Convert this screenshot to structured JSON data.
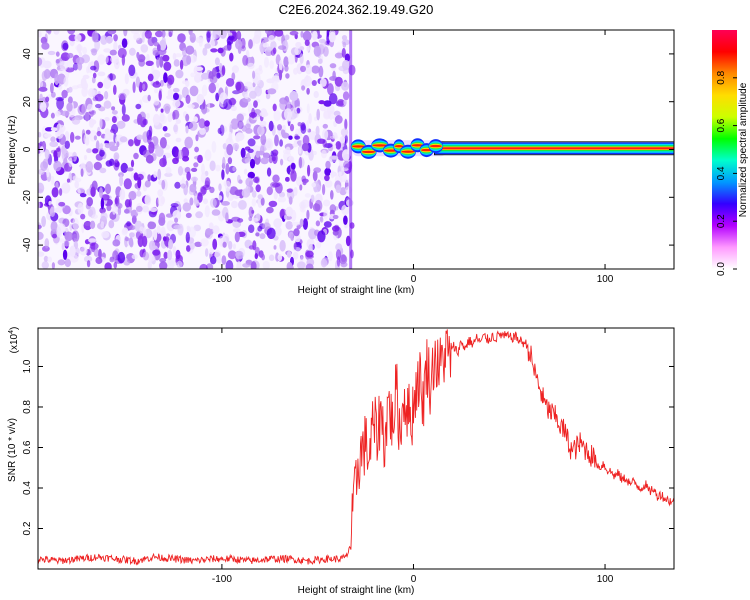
{
  "title": "C2E6.2024.362.19.49.G20",
  "chart_data": [
    {
      "type": "heatmap",
      "title": "C2E6.2024.362.19.49.G20",
      "xlabel": "Height of straight line (km)",
      "ylabel": "Frequency (Hz)",
      "xlim": [
        -196,
        136
      ],
      "ylim": [
        -50,
        50
      ],
      "xticks": [
        -100,
        0,
        100
      ],
      "yticks": [
        -40,
        -20,
        0,
        20,
        40
      ],
      "noise_region_x": [
        -196,
        -32
      ],
      "signal_start_x": -32,
      "signal_frequency_hz": 0.5,
      "signal_wobble_x": [
        -32,
        12
      ],
      "colorbar": {
        "label": "Normalized spectral amplitude",
        "range": [
          0,
          1
        ],
        "ticks": [
          "0.0",
          "0.2",
          "0.4",
          "0.6",
          "0.8"
        ],
        "tick_values": [
          0.0,
          0.2,
          0.4,
          0.6,
          0.8
        ],
        "colors": [
          "#ffffff",
          "#ff99ff",
          "#b300ff",
          "#3300ff",
          "#0099ff",
          "#00ffcc",
          "#00ff00",
          "#ccff00",
          "#ffdd00",
          "#ff8800",
          "#ff0000",
          "#ff0055"
        ]
      }
    },
    {
      "type": "line",
      "xlabel": "Height of straight line (km)",
      "ylabel": "SNR (10 * v/v)",
      "y_multiplier": "(x10",
      "y_multiplier_exp": "4",
      "y_multiplier_close": ")",
      "xlim": [
        -196,
        136
      ],
      "ylim": [
        0,
        1.19
      ],
      "xticks": [
        -100,
        0,
        100
      ],
      "yticks": [
        "0.2",
        "0.4",
        "0.6",
        "0.8",
        "1.0"
      ],
      "ytick_values": [
        0.2,
        0.4,
        0.6,
        0.8,
        1.0
      ],
      "series": [
        {
          "color": "#ee2222",
          "x": [
            -196,
            -185,
            -175,
            -165,
            -155,
            -145,
            -135,
            -125,
            -115,
            -105,
            -95,
            -85,
            -75,
            -65,
            -55,
            -45,
            -38,
            -35,
            -33,
            -31,
            -29,
            -27,
            -25,
            -23,
            -21,
            -19,
            -17,
            -15,
            -13,
            -11,
            -9,
            -7,
            -5,
            -3,
            -1,
            1,
            3,
            5,
            7,
            9,
            11,
            13,
            15,
            17,
            19,
            21,
            23,
            25,
            27,
            29,
            31,
            33,
            35,
            37,
            39,
            41,
            43,
            45,
            47,
            49,
            51,
            53,
            55,
            57,
            59,
            61,
            63,
            65,
            67,
            69,
            71,
            73,
            75,
            77,
            79,
            81,
            83,
            85,
            87,
            89,
            91,
            93,
            95,
            97,
            99,
            101,
            103,
            105,
            107,
            109,
            111,
            113,
            115,
            117,
            119,
            121,
            123,
            125,
            127,
            129,
            131,
            133,
            136
          ],
          "y": [
            0.05,
            0.04,
            0.05,
            0.06,
            0.05,
            0.04,
            0.06,
            0.05,
            0.04,
            0.05,
            0.05,
            0.04,
            0.05,
            0.05,
            0.04,
            0.05,
            0.05,
            0.06,
            0.12,
            0.32,
            0.52,
            0.58,
            0.62,
            0.55,
            0.72,
            0.66,
            0.78,
            0.62,
            0.84,
            0.7,
            0.9,
            0.66,
            0.86,
            0.78,
            0.74,
            0.88,
            0.96,
            0.82,
            1.02,
            0.9,
            1.06,
            0.98,
            1.03,
            1.08,
            1.04,
            1.1,
            1.07,
            1.12,
            1.09,
            1.13,
            1.11,
            1.14,
            1.12,
            1.15,
            1.13,
            1.15,
            1.14,
            1.16,
            1.15,
            1.15,
            1.14,
            1.15,
            1.13,
            1.12,
            1.11,
            1.06,
            0.98,
            0.92,
            0.86,
            0.8,
            0.78,
            0.76,
            0.74,
            0.7,
            0.68,
            0.62,
            0.58,
            0.6,
            0.62,
            0.6,
            0.58,
            0.56,
            0.54,
            0.5,
            0.52,
            0.49,
            0.48,
            0.46,
            0.47,
            0.44,
            0.45,
            0.42,
            0.43,
            0.41,
            0.4,
            0.42,
            0.38,
            0.4,
            0.36,
            0.37,
            0.35,
            0.34,
            0.33
          ]
        }
      ]
    }
  ]
}
